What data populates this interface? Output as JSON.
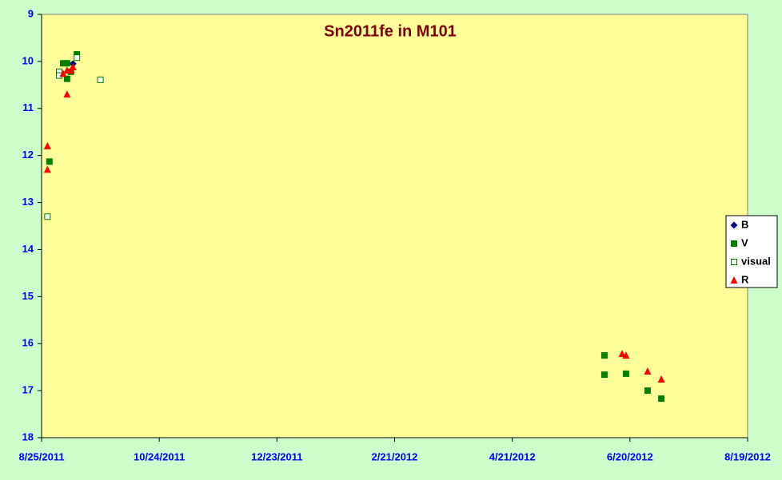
{
  "chart_data": {
    "type": "scatter",
    "title": "Sn2011fe in M101",
    "xlim": [
      "8/25/2011",
      "8/19/2012"
    ],
    "xticks": [
      "8/25/2011",
      "10/24/2011",
      "12/23/2011",
      "2/21/2012",
      "4/21/2012",
      "6/20/2012",
      "8/19/2012"
    ],
    "ylim": [
      9,
      18
    ],
    "invert_y": true,
    "yticks": [
      9,
      10,
      11,
      12,
      13,
      14,
      15,
      16,
      17,
      18
    ],
    "legend": "right",
    "series": [
      {
        "name": "B",
        "color": "#000080",
        "marker": "diamond",
        "x": [
          "9/10/2011"
        ],
        "values": [
          10.05
        ]
      },
      {
        "name": "V",
        "color": "#008000",
        "marker": "square",
        "x": [
          "8/29/2011",
          "9/5/2011",
          "9/7/2011",
          "9/7/2011",
          "9/9/2011",
          "9/12/2011",
          "6/7/2012",
          "6/7/2012",
          "6/18/2012",
          "6/29/2012",
          "7/6/2012"
        ],
        "values": [
          12.13,
          10.04,
          10.04,
          10.37,
          10.22,
          9.85,
          16.25,
          16.66,
          16.64,
          17.0,
          17.17
        ]
      },
      {
        "name": "visual",
        "color": "#008000",
        "marker": "open-square",
        "x": [
          "8/28/2011",
          "9/3/2011",
          "9/3/2011",
          "9/12/2011",
          "9/24/2011"
        ],
        "values": [
          13.3,
          10.22,
          10.3,
          9.92,
          10.39
        ]
      },
      {
        "name": "R",
        "color": "#ff0000",
        "marker": "triangle",
        "x": [
          "8/28/2011",
          "8/28/2011",
          "9/7/2011",
          "9/5/2011",
          "9/7/2011",
          "9/9/2011",
          "9/10/2011",
          "6/16/2012",
          "6/18/2012",
          "6/29/2012",
          "7/6/2012"
        ],
        "values": [
          11.8,
          12.3,
          10.7,
          10.26,
          10.19,
          10.19,
          10.12,
          16.22,
          16.25,
          16.59,
          16.76
        ]
      }
    ]
  }
}
